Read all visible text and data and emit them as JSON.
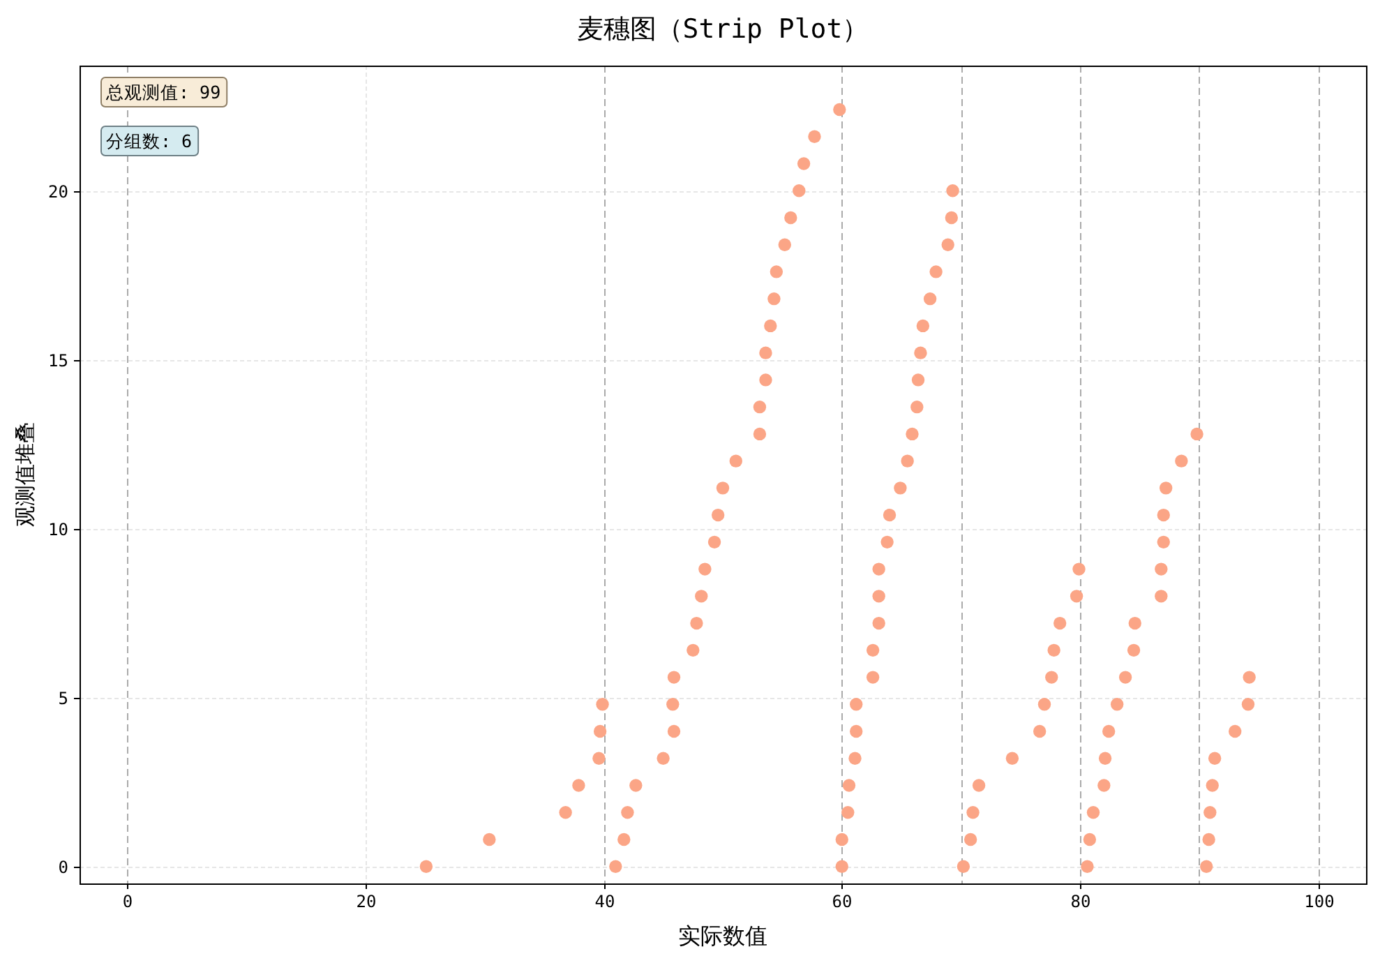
{
  "chart_data": {
    "type": "scatter",
    "title": "麦穗图（Strip Plot）",
    "xlabel": "实际数值",
    "ylabel": "观测值堆叠",
    "annotations": [
      "总观测值: 99",
      "分组数: 6"
    ],
    "x": [
      25.1,
      30.4,
      36.8,
      37.9,
      39.6,
      39.7,
      39.9,
      41.0,
      41.7,
      42.0,
      42.7,
      45.0,
      45.9,
      45.8,
      45.9,
      47.5,
      47.8,
      48.2,
      48.5,
      49.3,
      49.6,
      50.0,
      51.1,
      53.1,
      53.1,
      53.6,
      53.6,
      54.0,
      54.3,
      54.5,
      55.2,
      55.7,
      56.4,
      56.8,
      57.7,
      59.8,
      60.0,
      60.0,
      60.5,
      60.6,
      61.1,
      61.2,
      61.2,
      62.6,
      62.6,
      63.1,
      63.1,
      63.1,
      63.8,
      64.0,
      64.9,
      65.5,
      65.9,
      66.3,
      66.4,
      66.6,
      66.8,
      67.4,
      67.9,
      68.9,
      69.2,
      69.3,
      70.2,
      70.8,
      71.0,
      71.5,
      74.3,
      76.6,
      77.0,
      77.6,
      77.8,
      78.3,
      79.7,
      79.9,
      80.6,
      80.8,
      81.1,
      82.0,
      82.1,
      82.4,
      83.1,
      83.8,
      84.5,
      84.6,
      86.8,
      86.8,
      87.0,
      87.0,
      87.2,
      88.5,
      89.8,
      90.6,
      90.8,
      90.9,
      91.1,
      91.3,
      93.0,
      94.1,
      94.2
    ],
    "values": [
      0,
      0.8,
      1.6,
      2.4,
      3.2,
      4.0,
      4.8,
      0,
      0.8,
      1.6,
      2.4,
      3.2,
      4.0,
      4.8,
      5.6,
      6.4,
      7.2,
      8.0,
      8.8,
      9.6,
      10.4,
      11.2,
      12.0,
      12.8,
      13.6,
      14.4,
      15.2,
      16.0,
      16.8,
      17.6,
      18.4,
      19.2,
      20.0,
      20.8,
      21.6,
      22.4,
      0,
      0.8,
      1.6,
      2.4,
      3.2,
      4.0,
      4.8,
      5.6,
      6.4,
      7.2,
      8.0,
      8.8,
      9.6,
      10.4,
      11.2,
      12.0,
      12.8,
      13.6,
      14.4,
      15.2,
      16.0,
      16.8,
      17.6,
      18.4,
      19.2,
      20.0,
      0,
      0.8,
      1.6,
      2.4,
      3.2,
      4.0,
      4.8,
      5.6,
      6.4,
      7.2,
      8.0,
      8.8,
      0,
      0.8,
      1.6,
      2.4,
      3.2,
      4.0,
      4.8,
      5.6,
      6.4,
      7.2,
      8.0,
      8.8,
      9.6,
      10.4,
      11.2,
      12.0,
      12.8,
      0,
      0.8,
      1.6,
      2.4,
      3.2,
      4.0,
      4.8,
      5.6
    ],
    "color": "#fba586",
    "marker": "circle",
    "xlim": [
      -4,
      104
    ],
    "ylim": [
      -0.5,
      23.7
    ],
    "xticks": [
      0,
      20,
      40,
      60,
      80,
      100
    ],
    "yticks": [
      0,
      5,
      10,
      15,
      20
    ],
    "grid": true,
    "ref_lines": [
      {
        "axis": "x",
        "value": 0,
        "color": "#aaaaaa",
        "line_style": "dashed"
      },
      {
        "axis": "x",
        "value": 40,
        "color": "#aaaaaa",
        "line_style": "dashed"
      },
      {
        "axis": "x",
        "value": 60,
        "color": "#aaaaaa",
        "line_style": "dashed"
      },
      {
        "axis": "x",
        "value": 70,
        "color": "#aaaaaa",
        "line_style": "dashed"
      },
      {
        "axis": "x",
        "value": 80,
        "color": "#aaaaaa",
        "line_style": "dashed"
      },
      {
        "axis": "x",
        "value": 90,
        "color": "#aaaaaa",
        "line_style": "dashed"
      },
      {
        "axis": "x",
        "value": 100,
        "color": "#aaaaaa",
        "line_style": "dashed"
      }
    ]
  }
}
